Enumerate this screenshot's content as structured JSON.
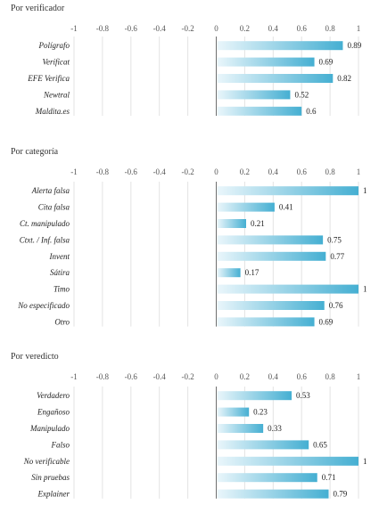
{
  "chart_data": [
    {
      "type": "bar",
      "title": "Por verificador",
      "categories": [
        "Polígrafo",
        "Verificat",
        "EFE Verifica",
        "Newtral",
        "Maldita.es"
      ],
      "values": [
        0.89,
        0.69,
        0.82,
        0.52,
        0.6
      ],
      "value_labels": [
        "0.89",
        "0.69",
        "0.82",
        "0.52",
        "0.6"
      ],
      "xlim": [
        -1,
        1
      ],
      "xticks": [
        "-1",
        "-0.8",
        "-0.6",
        "-0.4",
        "-0.2",
        "0",
        "0.2",
        "0.4",
        "0.6",
        "0.8",
        "1"
      ],
      "grid": true,
      "orientation": "horizontal"
    },
    {
      "type": "bar",
      "title": "Por categoría",
      "categories": [
        "Alerta falsa",
        "Cita falsa",
        "Ct. manipulado",
        "Ctxt. / Inf. falsa",
        "Invent",
        "Sátira",
        "Timo",
        "No especificado",
        "Otro"
      ],
      "values": [
        1,
        0.41,
        0.21,
        0.75,
        0.77,
        0.17,
        1,
        0.76,
        0.69
      ],
      "value_labels": [
        "1",
        "0.41",
        "0.21",
        "0.75",
        "0.77",
        "0.17",
        "1",
        "0.76",
        "0.69"
      ],
      "xlim": [
        -1,
        1
      ],
      "xticks": [
        "-1",
        "-0.8",
        "-0.6",
        "-0.4",
        "-0.2",
        "0",
        "0.2",
        "0.4",
        "0.6",
        "0.8",
        "1"
      ],
      "grid": true,
      "orientation": "horizontal"
    },
    {
      "type": "bar",
      "title": "Por veredicto",
      "categories": [
        "Verdadero",
        "Engañoso",
        "Manipulado",
        "Falso",
        "No verificable",
        "Sin pruebas",
        "Explainer"
      ],
      "values": [
        0.53,
        0.23,
        0.33,
        0.65,
        1,
        0.71,
        0.79
      ],
      "value_labels": [
        "0.53",
        "0.23",
        "0.33",
        "0.65",
        "1",
        "0.71",
        "0.79"
      ],
      "xlim": [
        -1,
        1
      ],
      "xticks": [
        "-1",
        "-0.8",
        "-0.6",
        "-0.4",
        "-0.2",
        "0",
        "0.2",
        "0.4",
        "0.6",
        "0.8",
        "1"
      ],
      "grid": true,
      "orientation": "horizontal"
    }
  ],
  "colors": {
    "bar_light": "#e9f6fb",
    "bar_dark": "#45afd2",
    "grid": "#e3e3e3",
    "axis": "#6f6f6f"
  }
}
